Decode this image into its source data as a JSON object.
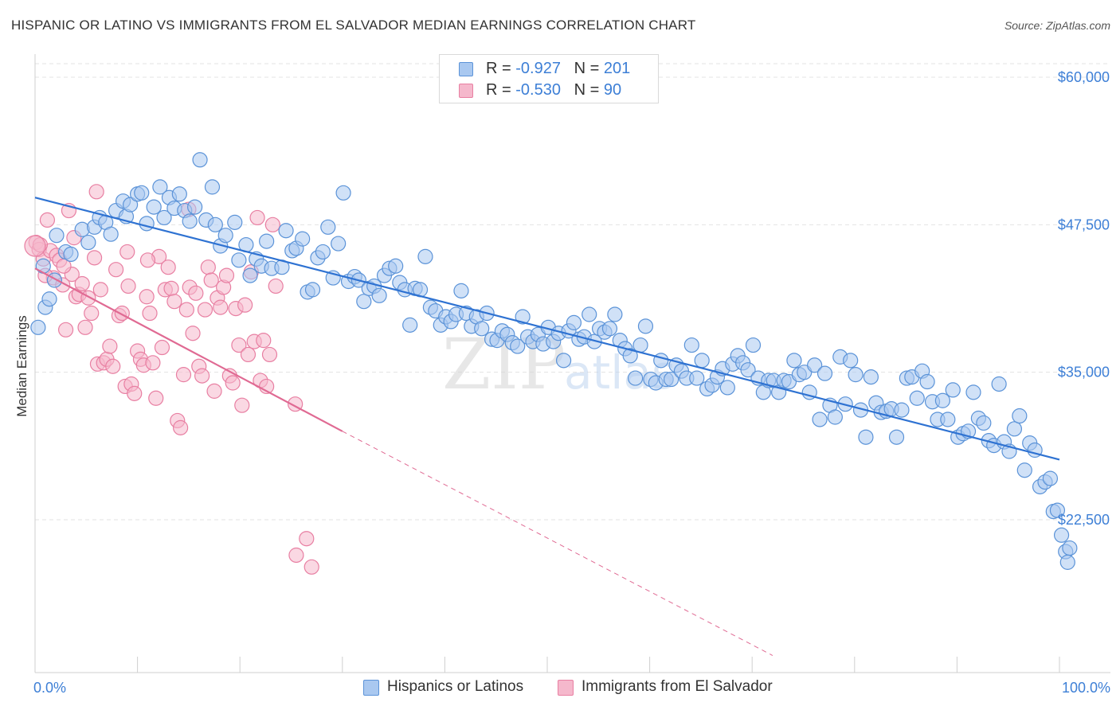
{
  "title": "HISPANIC OR LATINO VS IMMIGRANTS FROM EL SALVADOR MEDIAN EARNINGS CORRELATION CHART",
  "source": "Source: ZipAtlas.com",
  "watermark": "ZIPatlas",
  "legend_top": {
    "rows": [
      {
        "r_label": "R = ",
        "r_value": "-0.927",
        "n_label": "N = ",
        "n_value": "201"
      },
      {
        "r_label": "R = ",
        "r_value": "-0.530",
        "n_label": "N = ",
        "n_value": "90"
      }
    ]
  },
  "legend_bottom": {
    "items": [
      "Hispanics or Latinos",
      "Immigrants from El Salvador"
    ]
  },
  "colors": {
    "blue_fill": "#a9c8f0",
    "blue_stroke": "#5b93d8",
    "blue_line": "#2e72d2",
    "pink_fill": "#f5b8cc",
    "pink_stroke": "#e87fa2",
    "pink_line": "#e06a93",
    "axis_text": "#3d7fd6",
    "grid": "#e3e3e3"
  },
  "chart_data": {
    "type": "scatter",
    "title": "HISPANIC OR LATINO VS IMMIGRANTS FROM EL SALVADOR MEDIAN EARNINGS CORRELATION CHART",
    "xlabel": "",
    "ylabel": "Median Earnings",
    "xlim": [
      0,
      100
    ],
    "ylim": [
      12000,
      62000
    ],
    "x_tick_labels": [
      "0.0%",
      "100.0%"
    ],
    "y_ticks": [
      22500,
      35000,
      47500,
      60000
    ],
    "y_tick_labels": [
      "$22,500",
      "$35,000",
      "$47,500",
      "$60,000"
    ],
    "grid": true,
    "legend": "top-center",
    "series": [
      {
        "name": "Hispanics or Latinos",
        "r": -0.927,
        "n": 201,
        "trend": {
          "x0": 0,
          "y0": 49800,
          "x1": 100,
          "y1": 27600
        },
        "points": [
          [
            0.3,
            38800
          ],
          [
            1.0,
            40500
          ],
          [
            1.4,
            41200
          ],
          [
            1.9,
            42800
          ],
          [
            2.1,
            46600
          ],
          [
            3.0,
            45200
          ],
          [
            3.5,
            45000
          ],
          [
            4.6,
            47100
          ],
          [
            5.2,
            46000
          ],
          [
            5.8,
            47300
          ],
          [
            6.3,
            48100
          ],
          [
            6.9,
            47700
          ],
          [
            7.9,
            48700
          ],
          [
            7.4,
            46700
          ],
          [
            8.6,
            49500
          ],
          [
            8.9,
            48200
          ],
          [
            9.3,
            49200
          ],
          [
            10.0,
            50100
          ],
          [
            10.4,
            50200
          ],
          [
            10.9,
            47600
          ],
          [
            11.6,
            49000
          ],
          [
            12.2,
            50700
          ],
          [
            12.6,
            48100
          ],
          [
            13.1,
            49800
          ],
          [
            13.6,
            48900
          ],
          [
            14.1,
            50100
          ],
          [
            14.6,
            48700
          ],
          [
            15.1,
            47800
          ],
          [
            15.6,
            49000
          ],
          [
            16.1,
            53000
          ],
          [
            16.7,
            47900
          ],
          [
            17.3,
            50700
          ],
          [
            17.6,
            47500
          ],
          [
            18.1,
            45700
          ],
          [
            18.6,
            46600
          ],
          [
            19.5,
            47700
          ],
          [
            19.9,
            44500
          ],
          [
            20.6,
            45800
          ],
          [
            21.0,
            43200
          ],
          [
            21.6,
            44600
          ],
          [
            22.1,
            44000
          ],
          [
            22.6,
            46100
          ],
          [
            23.1,
            43800
          ],
          [
            24.1,
            43900
          ],
          [
            24.5,
            47000
          ],
          [
            25.1,
            45300
          ],
          [
            25.5,
            45500
          ],
          [
            26.1,
            46300
          ],
          [
            26.6,
            41800
          ],
          [
            27.1,
            42000
          ],
          [
            27.6,
            44700
          ],
          [
            28.1,
            45200
          ],
          [
            28.6,
            47300
          ],
          [
            29.1,
            43000
          ],
          [
            29.6,
            45900
          ],
          [
            30.1,
            50200
          ],
          [
            30.6,
            42700
          ],
          [
            31.2,
            43100
          ],
          [
            31.6,
            42800
          ],
          [
            32.1,
            41000
          ],
          [
            32.6,
            42100
          ],
          [
            33.1,
            42300
          ],
          [
            33.6,
            41500
          ],
          [
            34.1,
            43200
          ],
          [
            34.6,
            43800
          ],
          [
            35.2,
            44000
          ],
          [
            35.6,
            42600
          ],
          [
            36.1,
            42000
          ],
          [
            36.6,
            39000
          ],
          [
            37.1,
            42100
          ],
          [
            37.6,
            42000
          ],
          [
            38.1,
            44800
          ],
          [
            38.6,
            40500
          ],
          [
            39.1,
            40200
          ],
          [
            39.6,
            39000
          ],
          [
            40.1,
            39700
          ],
          [
            40.6,
            39300
          ],
          [
            41.1,
            39900
          ],
          [
            41.6,
            41900
          ],
          [
            42.1,
            40000
          ],
          [
            42.6,
            38900
          ],
          [
            43.1,
            39700
          ],
          [
            43.6,
            38700
          ],
          [
            44.1,
            40000
          ],
          [
            44.6,
            37800
          ],
          [
            45.1,
            37700
          ],
          [
            45.6,
            38500
          ],
          [
            46.1,
            38200
          ],
          [
            46.6,
            37500
          ],
          [
            47.1,
            37200
          ],
          [
            47.6,
            39700
          ],
          [
            48.1,
            38000
          ],
          [
            48.6,
            37600
          ],
          [
            49.1,
            38200
          ],
          [
            49.6,
            37400
          ],
          [
            50.1,
            38800
          ],
          [
            50.6,
            37600
          ],
          [
            51.1,
            38300
          ],
          [
            51.6,
            36000
          ],
          [
            52.1,
            38500
          ],
          [
            52.6,
            39200
          ],
          [
            53.1,
            37800
          ],
          [
            53.6,
            38000
          ],
          [
            54.1,
            39900
          ],
          [
            54.6,
            37600
          ],
          [
            55.1,
            38700
          ],
          [
            55.6,
            38400
          ],
          [
            56.1,
            38700
          ],
          [
            56.6,
            39900
          ],
          [
            57.1,
            37700
          ],
          [
            57.6,
            37000
          ],
          [
            58.1,
            36400
          ],
          [
            58.6,
            34500
          ],
          [
            59.1,
            37300
          ],
          [
            59.6,
            38900
          ],
          [
            60.1,
            34400
          ],
          [
            60.6,
            34100
          ],
          [
            61.1,
            36000
          ],
          [
            61.6,
            34400
          ],
          [
            62.1,
            34400
          ],
          [
            62.6,
            35600
          ],
          [
            63.1,
            35100
          ],
          [
            63.6,
            34500
          ],
          [
            64.1,
            37300
          ],
          [
            64.6,
            34500
          ],
          [
            65.1,
            36000
          ],
          [
            65.6,
            33600
          ],
          [
            66.1,
            33900
          ],
          [
            66.6,
            34600
          ],
          [
            67.1,
            35300
          ],
          [
            67.6,
            33700
          ],
          [
            68.1,
            35700
          ],
          [
            68.6,
            36400
          ],
          [
            69.1,
            35800
          ],
          [
            69.6,
            35200
          ],
          [
            70.1,
            37300
          ],
          [
            70.6,
            34500
          ],
          [
            71.1,
            33300
          ],
          [
            71.6,
            34300
          ],
          [
            72.1,
            34300
          ],
          [
            72.6,
            33300
          ],
          [
            73.1,
            34300
          ],
          [
            73.6,
            34200
          ],
          [
            74.1,
            36000
          ],
          [
            74.6,
            34800
          ],
          [
            75.1,
            35000
          ],
          [
            75.6,
            33300
          ],
          [
            76.1,
            35600
          ],
          [
            76.6,
            31000
          ],
          [
            77.1,
            34900
          ],
          [
            77.6,
            32200
          ],
          [
            78.1,
            31200
          ],
          [
            78.6,
            36300
          ],
          [
            79.1,
            32300
          ],
          [
            79.6,
            36000
          ],
          [
            80.1,
            34800
          ],
          [
            80.6,
            31800
          ],
          [
            81.1,
            29500
          ],
          [
            81.6,
            34600
          ],
          [
            82.1,
            32400
          ],
          [
            82.6,
            31600
          ],
          [
            83.1,
            31700
          ],
          [
            83.6,
            31900
          ],
          [
            84.1,
            29500
          ],
          [
            84.6,
            31800
          ],
          [
            85.1,
            34500
          ],
          [
            85.6,
            34600
          ],
          [
            86.1,
            32800
          ],
          [
            86.6,
            35100
          ],
          [
            87.1,
            34200
          ],
          [
            87.6,
            32500
          ],
          [
            88.1,
            31000
          ],
          [
            88.6,
            32600
          ],
          [
            89.1,
            31000
          ],
          [
            89.6,
            33500
          ],
          [
            90.1,
            29500
          ],
          [
            90.6,
            29800
          ],
          [
            91.1,
            30000
          ],
          [
            91.6,
            33300
          ],
          [
            92.1,
            31100
          ],
          [
            92.6,
            30700
          ],
          [
            93.1,
            29200
          ],
          [
            93.6,
            28800
          ],
          [
            94.1,
            34000
          ],
          [
            94.6,
            29100
          ],
          [
            95.1,
            28300
          ],
          [
            95.6,
            30200
          ],
          [
            96.1,
            31300
          ],
          [
            96.6,
            26700
          ],
          [
            97.1,
            29000
          ],
          [
            97.6,
            28400
          ],
          [
            98.1,
            25300
          ],
          [
            98.6,
            25700
          ],
          [
            99.1,
            26000
          ],
          [
            99.4,
            23200
          ],
          [
            99.8,
            23300
          ],
          [
            100.2,
            21200
          ],
          [
            100.6,
            19800
          ],
          [
            101.0,
            20100
          ],
          [
            100.8,
            18900
          ],
          [
            0.8,
            44000
          ]
        ]
      },
      {
        "name": "Immigrants from El Salvador",
        "r": -0.53,
        "n": 90,
        "trend": {
          "x0": 0,
          "y0": 43800,
          "x1": 30,
          "y1": 30000,
          "x_end_dash": 72,
          "y_end_dash": 11000
        },
        "points": [
          [
            0.1,
            46000
          ],
          [
            0.4,
            45400
          ],
          [
            0.8,
            44600
          ],
          [
            1.2,
            47900
          ],
          [
            1.5,
            45300
          ],
          [
            1.8,
            43000
          ],
          [
            2.1,
            44900
          ],
          [
            2.4,
            44500
          ],
          [
            2.7,
            42400
          ],
          [
            3.0,
            38600
          ],
          [
            3.3,
            48700
          ],
          [
            3.6,
            43300
          ],
          [
            4.0,
            41400
          ],
          [
            4.3,
            41600
          ],
          [
            4.6,
            42500
          ],
          [
            4.9,
            38800
          ],
          [
            5.2,
            41300
          ],
          [
            5.5,
            40000
          ],
          [
            5.8,
            44700
          ],
          [
            6.1,
            35700
          ],
          [
            6.4,
            42000
          ],
          [
            6.7,
            35800
          ],
          [
            7.0,
            36100
          ],
          [
            7.3,
            37200
          ],
          [
            7.6,
            35500
          ],
          [
            7.9,
            43700
          ],
          [
            8.2,
            39800
          ],
          [
            8.5,
            40000
          ],
          [
            8.8,
            33800
          ],
          [
            9.1,
            42300
          ],
          [
            9.4,
            34000
          ],
          [
            9.7,
            33200
          ],
          [
            10.0,
            36800
          ],
          [
            10.3,
            36100
          ],
          [
            10.6,
            35600
          ],
          [
            10.9,
            41400
          ],
          [
            11.2,
            40000
          ],
          [
            11.5,
            35800
          ],
          [
            11.8,
            32800
          ],
          [
            12.1,
            44800
          ],
          [
            12.4,
            37100
          ],
          [
            12.7,
            42000
          ],
          [
            13.0,
            43900
          ],
          [
            13.3,
            42100
          ],
          [
            13.6,
            41000
          ],
          [
            13.9,
            30900
          ],
          [
            14.2,
            30300
          ],
          [
            14.5,
            34800
          ],
          [
            14.8,
            40300
          ],
          [
            15.1,
            42200
          ],
          [
            15.4,
            38300
          ],
          [
            15.7,
            41700
          ],
          [
            16.0,
            35500
          ],
          [
            16.3,
            34700
          ],
          [
            16.6,
            40300
          ],
          [
            16.9,
            43900
          ],
          [
            17.2,
            42800
          ],
          [
            17.5,
            33400
          ],
          [
            17.8,
            41300
          ],
          [
            18.1,
            40500
          ],
          [
            18.4,
            42200
          ],
          [
            18.7,
            43200
          ],
          [
            19.0,
            34700
          ],
          [
            19.3,
            34100
          ],
          [
            19.6,
            40400
          ],
          [
            19.9,
            37300
          ],
          [
            20.2,
            32200
          ],
          [
            20.5,
            40700
          ],
          [
            20.8,
            36500
          ],
          [
            21.1,
            43500
          ],
          [
            21.4,
            37600
          ],
          [
            21.7,
            48100
          ],
          [
            22.0,
            34300
          ],
          [
            22.3,
            37700
          ],
          [
            22.6,
            33800
          ],
          [
            22.9,
            36500
          ],
          [
            23.2,
            47500
          ],
          [
            23.5,
            42300
          ],
          [
            25.4,
            32300
          ],
          [
            25.5,
            19500
          ],
          [
            27.0,
            18500
          ],
          [
            26.5,
            20900
          ],
          [
            2.8,
            44000
          ],
          [
            0.5,
            45800
          ],
          [
            1.0,
            43200
          ],
          [
            6.0,
            50300
          ],
          [
            3.8,
            46400
          ],
          [
            9.0,
            45200
          ],
          [
            11.0,
            44500
          ],
          [
            15.0,
            48800
          ]
        ]
      }
    ]
  }
}
